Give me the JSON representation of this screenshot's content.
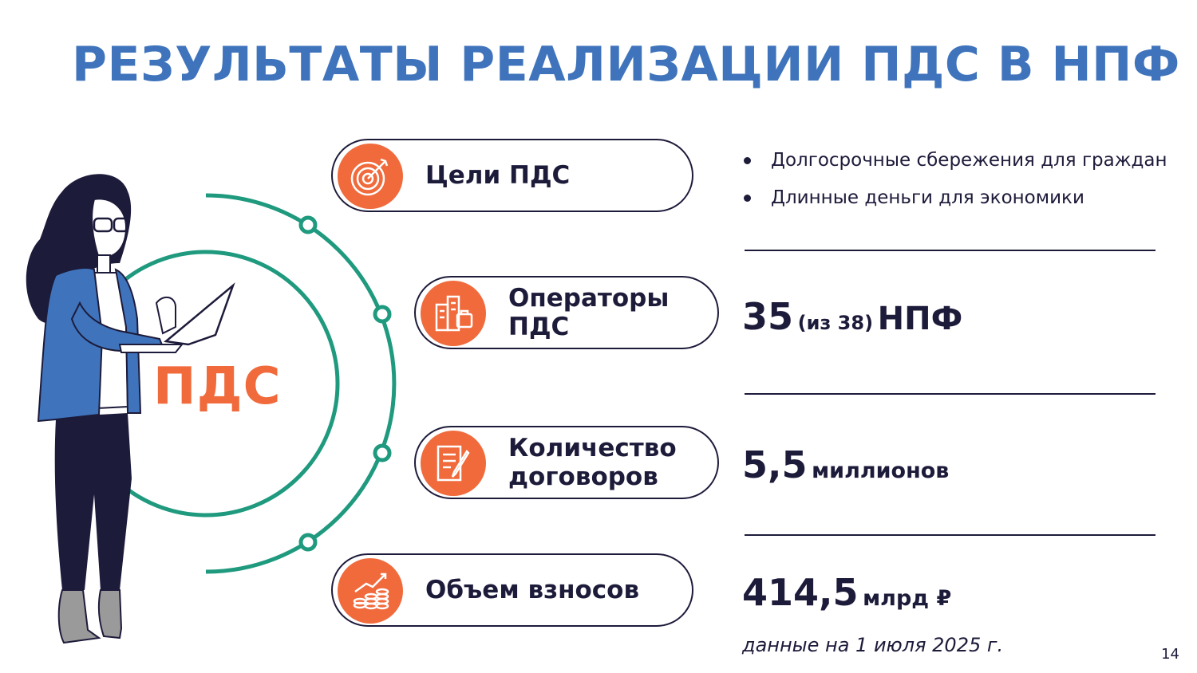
{
  "title": "РЕЗУЛЬТАТЫ РЕАЛИЗАЦИИ ПДС В НПФ",
  "center_label": "ПДС",
  "colors": {
    "title": "#3f74bc",
    "accent": "#f06a3c",
    "ring": "#1f9a7e",
    "text": "#1d1b3a"
  },
  "cards": [
    {
      "lines": [
        "Цели ПДС"
      ],
      "icon": "target-icon"
    },
    {
      "lines": [
        "Операторы",
        "ПДС"
      ],
      "icon": "buildings-icon"
    },
    {
      "lines": [
        "Количество",
        "договоров"
      ],
      "icon": "contract-icon"
    },
    {
      "lines": [
        "Объем взносов"
      ],
      "icon": "coins-growth-icon"
    }
  ],
  "goals": [
    "Долгосрочные сбережения для граждан",
    "Длинные деньги для экономики"
  ],
  "operators": {
    "value": "35",
    "qualifier": "(из 38)",
    "unit": "НПФ"
  },
  "contracts": {
    "value": "5,5",
    "unit": "миллионов"
  },
  "contributions": {
    "value": "414,5",
    "unit": "млрд ₽"
  },
  "note": "данные на 1 июля 2025 г.",
  "page_number": "14"
}
